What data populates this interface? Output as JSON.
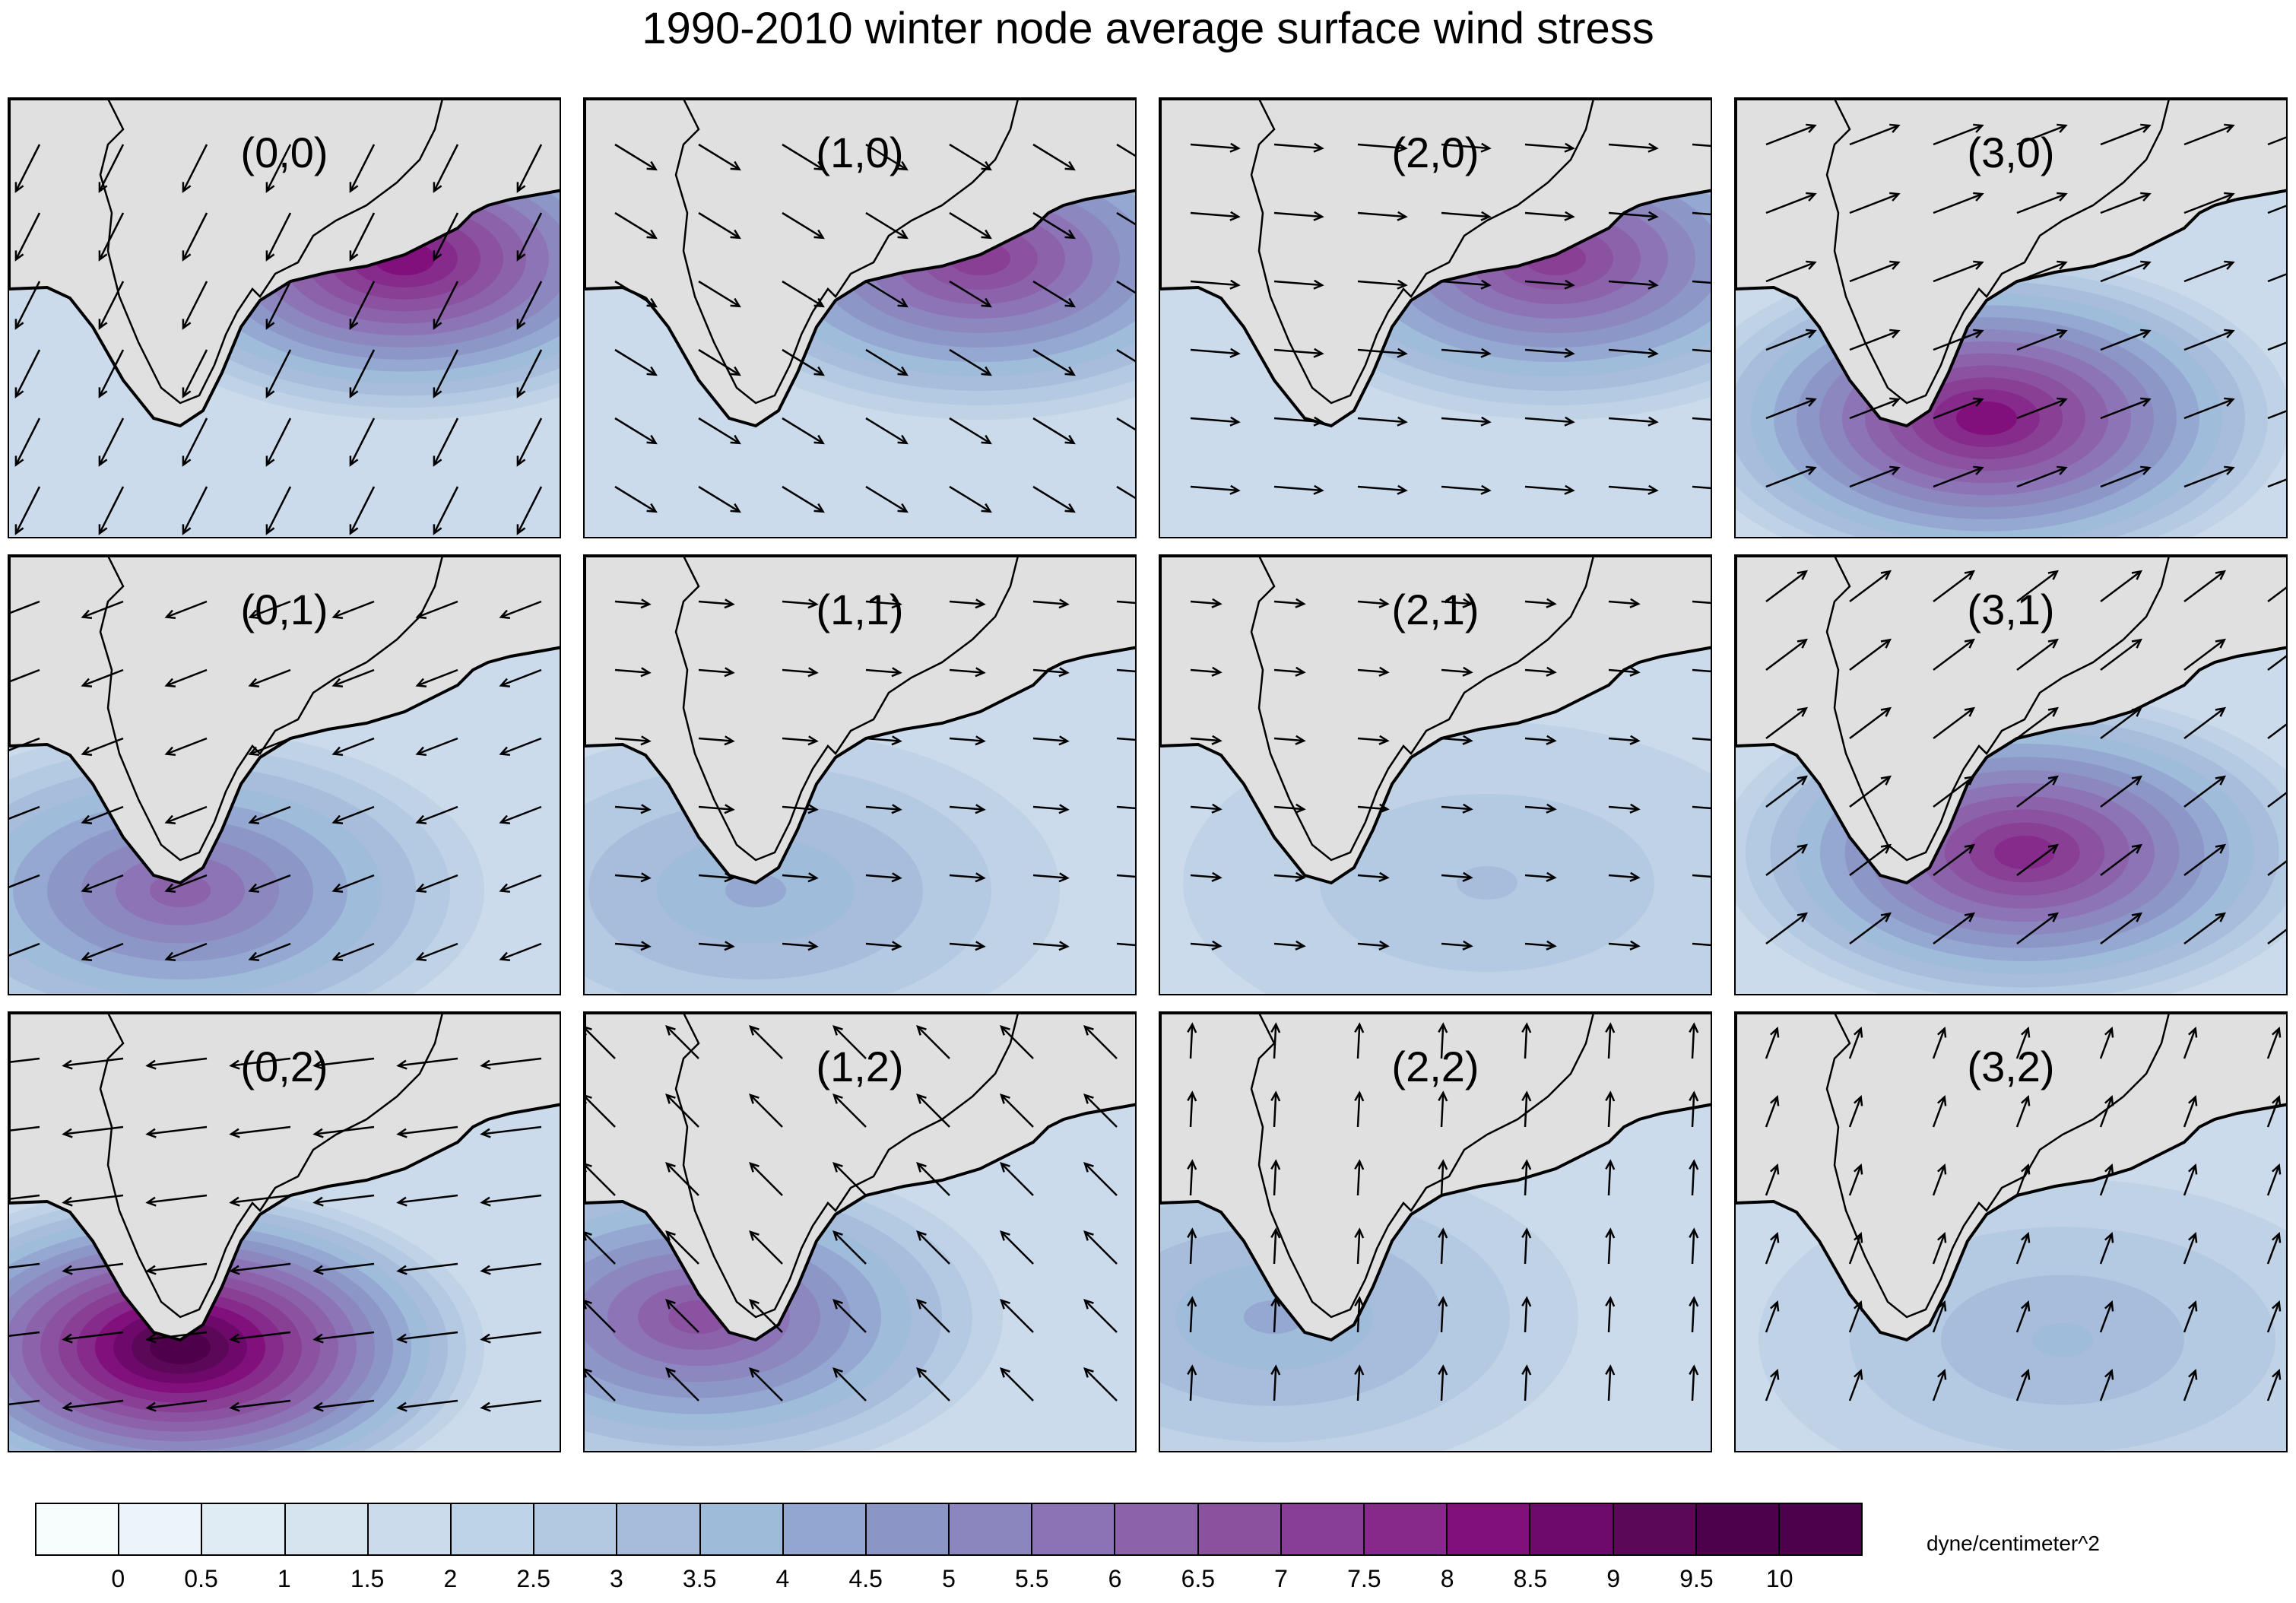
{
  "figure": {
    "title": "1990-2010 winter node average surface wind stress",
    "units": "dyne/centimeter^2"
  },
  "colorbar": {
    "tick_labels": [
      "0",
      "0.5",
      "1",
      "1.5",
      "2",
      "2.5",
      "3",
      "3.5",
      "4",
      "4.5",
      "5",
      "5.5",
      "6",
      "6.5",
      "7",
      "7.5",
      "8",
      "8.5",
      "9",
      "9.5",
      "10"
    ],
    "colors": [
      "#f7fcfd",
      "#ebf4f8",
      "#e0ecf4",
      "#d6e4f0",
      "#cbdbec",
      "#bfd3e6",
      "#b3c9e1",
      "#a6bcda",
      "#9ebcda",
      "#93a6d2",
      "#8c96c6",
      "#8c86be",
      "#8c73b6",
      "#8c62aa",
      "#8a519f",
      "#883e94",
      "#86298a",
      "#810f7c",
      "#6d0a6a",
      "#5b0858",
      "#4d004b"
    ]
  },
  "chart_data": {
    "type": "heatmap",
    "title": "1990-2010 winter node average surface wind stress",
    "colorbar_units": "dyne/centimeter^2",
    "colorbar_levels": [
      0,
      0.5,
      1,
      1.5,
      2,
      2.5,
      3,
      3.5,
      4,
      4.5,
      5,
      5.5,
      6,
      6.5,
      7,
      7.5,
      8,
      8.5,
      9,
      9.5,
      10
    ],
    "grid": "4 x 3 SOM nodes",
    "panels": [
      {
        "label": "(0,0)",
        "max_stress": 8.5,
        "hotspot": "north-east coast",
        "wind": "south-west"
      },
      {
        "label": "(1,0)",
        "max_stress": 7.5,
        "hotspot": "north-east coast",
        "wind": "south-east"
      },
      {
        "label": "(2,0)",
        "max_stress": 7.5,
        "hotspot": "north-east coast",
        "wind": "east"
      },
      {
        "label": "(3,0)",
        "max_stress": 8.5,
        "hotspot": "south of cape",
        "wind": "east-north-east"
      },
      {
        "label": "(0,1)",
        "max_stress": 6.5,
        "hotspot": "cape tip",
        "wind": "west-south-west"
      },
      {
        "label": "(1,1)",
        "max_stress": 4.5,
        "hotspot": "cape tip",
        "wind": "east"
      },
      {
        "label": "(2,1)",
        "max_stress": 3.5,
        "hotspot": "none",
        "wind": "east"
      },
      {
        "label": "(3,1)",
        "max_stress": 8.0,
        "hotspot": "south-east of cape",
        "wind": "north-east"
      },
      {
        "label": "(0,2)",
        "max_stress": 10,
        "hotspot": "cape tip",
        "wind": "west"
      },
      {
        "label": "(1,2)",
        "max_stress": 7.0,
        "hotspot": "west of cape",
        "wind": "north-west"
      },
      {
        "label": "(2,2)",
        "max_stress": 4.5,
        "hotspot": "west of cape",
        "wind": "north"
      },
      {
        "label": "(3,2)",
        "max_stress": 4.0,
        "hotspot": "none",
        "wind": "north-north-east"
      }
    ]
  }
}
